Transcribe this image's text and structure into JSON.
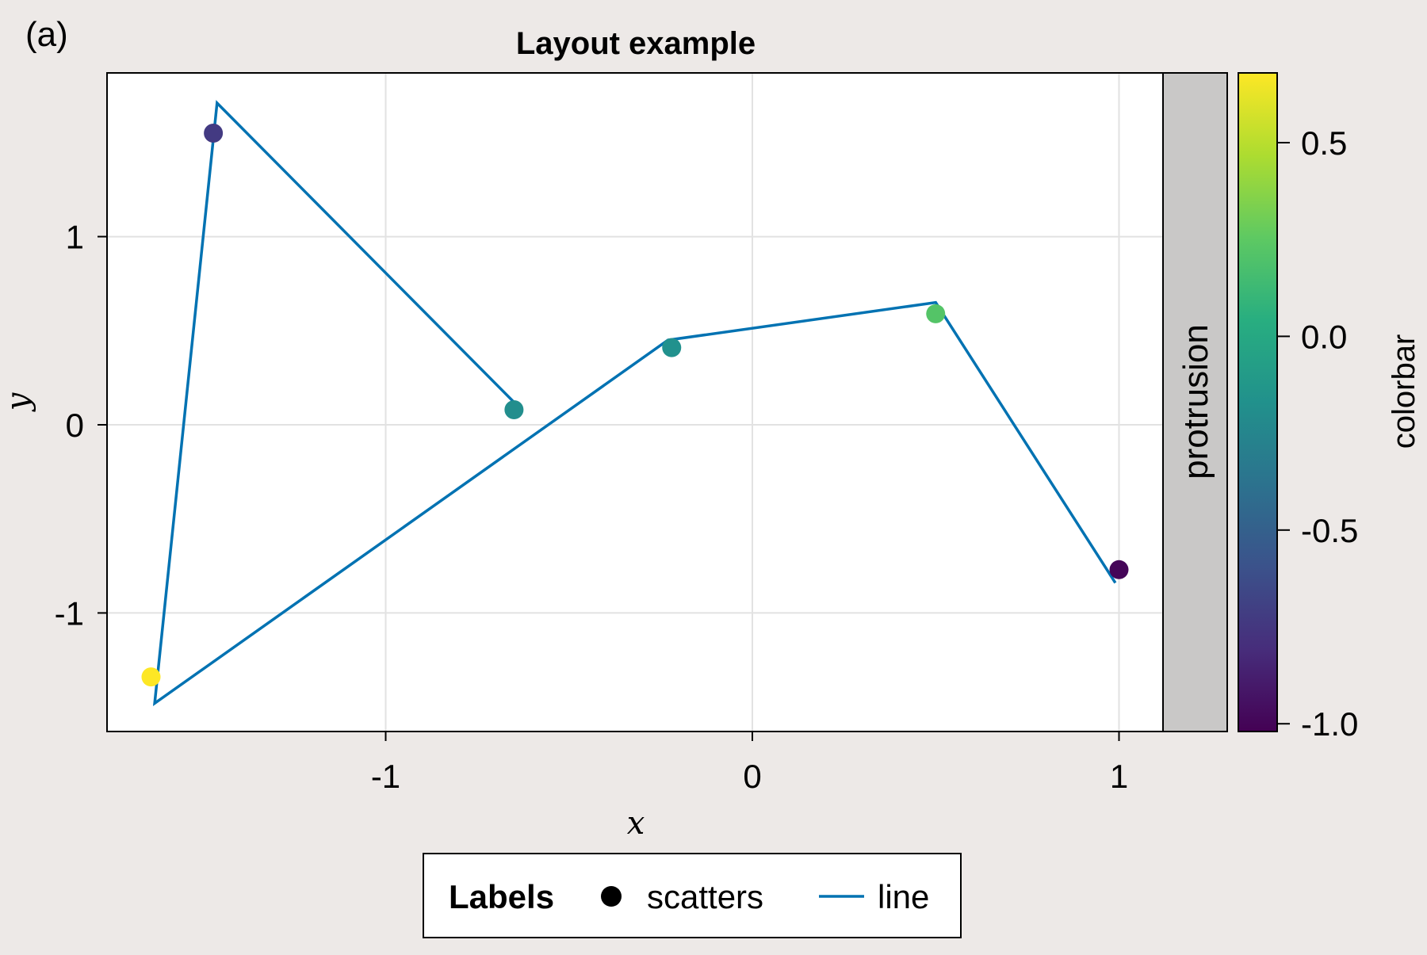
{
  "panel_label": "(a)",
  "protrusion_label": "protrusion",
  "chart_data": {
    "type": "scatter",
    "title": "Layout example",
    "xlabel": "x",
    "ylabel": "y",
    "xlim": [
      -1.76,
      1.12
    ],
    "ylim": [
      -1.63,
      1.87
    ],
    "grid": true,
    "x_ticks": [
      -1,
      0,
      1
    ],
    "x_tick_labels": [
      "-1",
      "0",
      "1"
    ],
    "y_ticks": [
      -1,
      0,
      1
    ],
    "y_tick_labels": [
      "-1",
      "0",
      "1"
    ],
    "series": [
      {
        "name": "scatters",
        "kind": "scatter",
        "x": [
          -0.65,
          1.0,
          -1.47,
          -1.64,
          -0.22,
          0.5
        ],
        "y": [
          0.08,
          -0.77,
          1.55,
          -1.34,
          0.41,
          0.59
        ],
        "color_values": [
          -0.19,
          -1.0,
          -0.73,
          0.68,
          -0.17,
          0.22
        ]
      },
      {
        "name": "line",
        "kind": "line",
        "color": "#0072b2",
        "x": [
          -0.64,
          -1.46,
          -1.63,
          -0.23,
          0.5,
          0.99
        ],
        "y": [
          0.1,
          1.71,
          -1.48,
          0.45,
          0.65,
          -0.84
        ]
      }
    ],
    "colorbar": {
      "label": "colorbar",
      "range": [
        -1.02,
        0.68
      ],
      "ticks": [
        -1.0,
        -0.5,
        0.0,
        0.5
      ],
      "tick_labels": [
        "-1.0",
        "-0.5",
        "0.0",
        "0.5"
      ],
      "colormap": "viridis"
    },
    "legend": {
      "title": "Labels",
      "placement": "bottom",
      "entries": [
        "scatters",
        "line"
      ]
    }
  }
}
